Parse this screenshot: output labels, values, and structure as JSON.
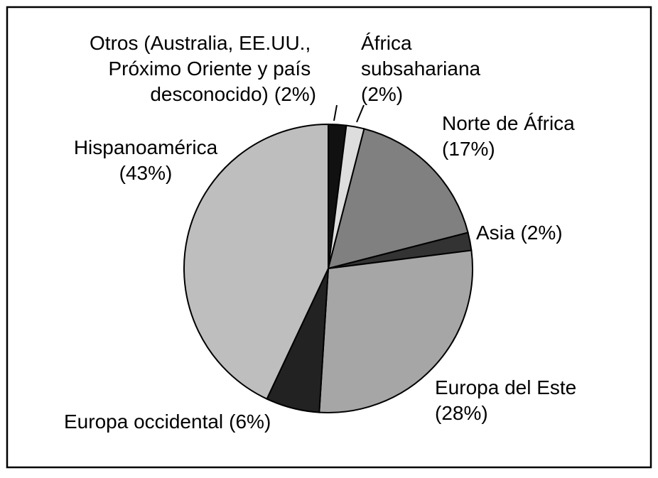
{
  "chart_data": {
    "type": "pie",
    "categories": [
      "Otros (Australia, EE.UU., Próximo Oriente y país desconocido)",
      "África subsahariana",
      "Norte de África",
      "Asia",
      "Europa del Este",
      "Europa occidental",
      "Hispanoamérica"
    ],
    "values": [
      2,
      2,
      17,
      2,
      28,
      6,
      43
    ],
    "value_labels": [
      "(2%)",
      "(2%)",
      "(17%)",
      "(2%)",
      "(28%)",
      "(6%)",
      "(43%)"
    ],
    "colors": [
      "#111111",
      "#dddddd",
      "#808080",
      "#333333",
      "#a6a6a6",
      "#222222",
      "#bebebe"
    ]
  }
}
